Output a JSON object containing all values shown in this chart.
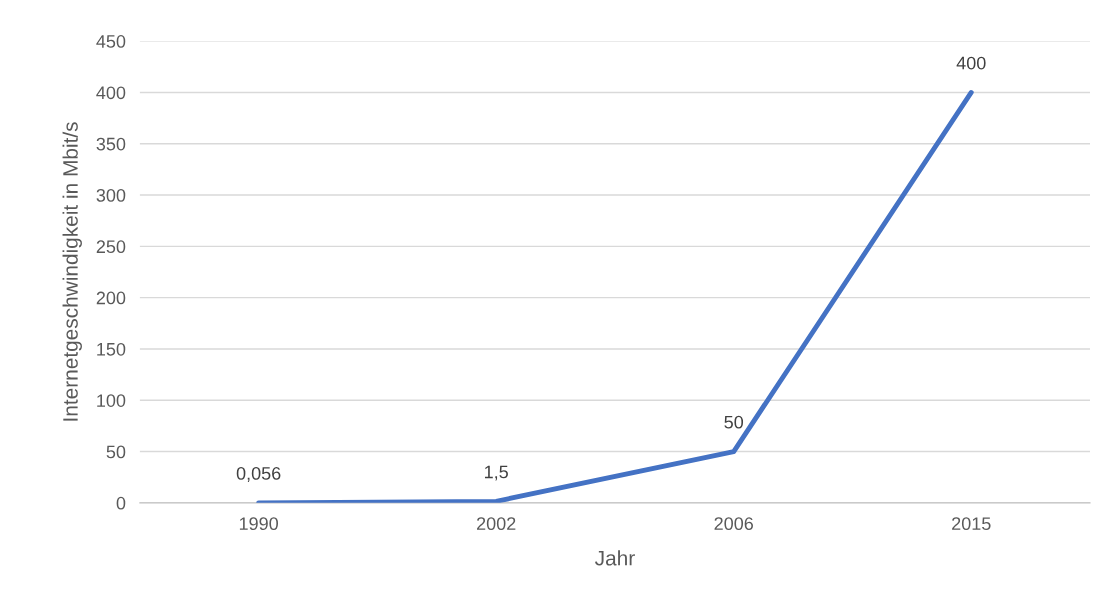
{
  "chart_data": {
    "type": "line",
    "xlabel": "Jahr",
    "ylabel": "Internetgeschwindigkeit in Mbit/s",
    "categories": [
      "1990",
      "2002",
      "2006",
      "2015"
    ],
    "series": [
      {
        "color": "#4472c4",
        "values": [
          0.056,
          1.5,
          50,
          400
        ],
        "value_labels": [
          "0,056",
          "1,5",
          "50",
          "400"
        ]
      }
    ],
    "ylim": [
      0,
      450
    ],
    "yticks": [
      0,
      50,
      100,
      150,
      200,
      250,
      300,
      350,
      400,
      450
    ],
    "grid": "y",
    "marker": "none",
    "line_style": "solid"
  }
}
